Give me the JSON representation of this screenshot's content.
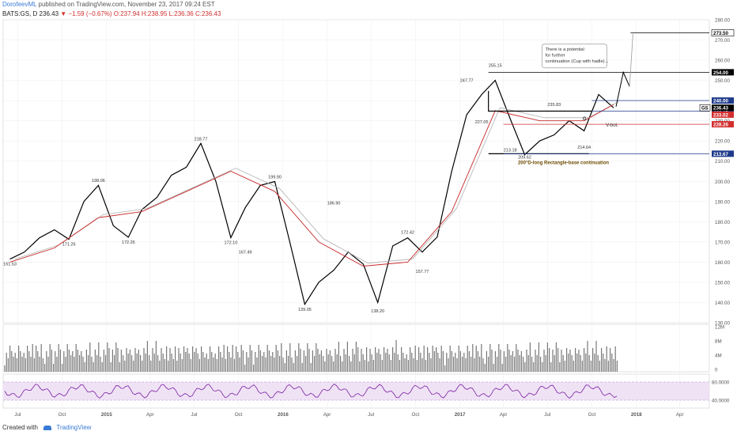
{
  "header": {
    "author": "DorofeevML",
    "published_text": "published on TradingView.com, November 23, 2017 09:24 EST",
    "symbol": "BATS:GS, D",
    "last": "236.43",
    "change": "▼ −1.59 (−0.67%)",
    "ohlc": "O:237.94 H:238.95 L:236.36 C:236.43"
  },
  "footer": {
    "created_with": "Created with",
    "brand": "TradingView"
  },
  "chart_data": {
    "type": "line",
    "symbol": "GS",
    "ylim": [
      130,
      280
    ],
    "y_ticks": [
      "280.00",
      "270.00",
      "260.00",
      "250.00",
      "240.00",
      "230.00",
      "220.00",
      "210.00",
      "200.00",
      "190.00",
      "180.00",
      "170.00",
      "160.00",
      "150.00",
      "140.00",
      "130.00"
    ],
    "x_labels": [
      "Jul",
      "Oct",
      "2015",
      "Apr",
      "Jul",
      "Oct",
      "2016",
      "Apr",
      "Jul",
      "Oct",
      "2017",
      "Apr",
      "Jul",
      "Oct",
      "2018",
      "Apr"
    ],
    "price_series": {
      "x": [
        "2014-06",
        "2014-07",
        "2014-08",
        "2014-09",
        "2014-10",
        "2014-11",
        "2014-12",
        "2015-01",
        "2015-02",
        "2015-03",
        "2015-04",
        "2015-05",
        "2015-06",
        "2015-07",
        "2015-08",
        "2015-09",
        "2015-10",
        "2015-11",
        "2015-12",
        "2016-01",
        "2016-02",
        "2016-03",
        "2016-04",
        "2016-05",
        "2016-06",
        "2016-07",
        "2016-08",
        "2016-09",
        "2016-10",
        "2016-11",
        "2016-12",
        "2017-01",
        "2017-02",
        "2017-03",
        "2017-04",
        "2017-05",
        "2017-06",
        "2017-07",
        "2017-08",
        "2017-09",
        "2017-10",
        "2017-11"
      ],
      "y": [
        161.5,
        165,
        172,
        176,
        171.3,
        190,
        198,
        178,
        172.3,
        186,
        192,
        203,
        207,
        218.8,
        200,
        172.1,
        187,
        198,
        199.9,
        170,
        139.1,
        150,
        156,
        165,
        159,
        140,
        168,
        172,
        165,
        172.4,
        205,
        233,
        243,
        250,
        231,
        213.2,
        220,
        223,
        230,
        225,
        243,
        236.4
      ]
    },
    "ma_series": {
      "x": [
        "2014-06",
        "2014-09",
        "2014-12",
        "2015-03",
        "2015-06",
        "2015-09",
        "2015-12",
        "2016-03",
        "2016-06",
        "2016-09",
        "2016-12",
        "2017-03",
        "2017-06",
        "2017-09",
        "2017-11"
      ],
      "y": [
        160,
        167,
        182,
        185,
        195,
        205,
        195,
        170,
        158,
        160,
        185,
        235,
        230,
        230,
        238
      ]
    },
    "point_labels": [
      {
        "x": "2014-06",
        "y": 161.53,
        "text": "161.53"
      },
      {
        "x": "2014-10",
        "y": 171.26,
        "text": "171.26"
      },
      {
        "x": "2014-12",
        "y": 198.06,
        "text": "198.06"
      },
      {
        "x": "2015-02",
        "y": 172.26,
        "text": "172.26"
      },
      {
        "x": "2015-07",
        "y": 218.77,
        "text": "218.77"
      },
      {
        "x": "2015-09",
        "y": 172.1,
        "text": "172.10"
      },
      {
        "x": "2015-10",
        "y": 167.49,
        "text": "167.49"
      },
      {
        "x": "2015-12",
        "y": 199.9,
        "text": "199.90"
      },
      {
        "x": "2016-02",
        "y": 139.05,
        "text": "139.05"
      },
      {
        "x": "2016-04",
        "y": 186.9,
        "text": "186.90"
      },
      {
        "x": "2016-07",
        "y": 138.2,
        "text": "138.20"
      },
      {
        "x": "2016-09",
        "y": 172.42,
        "text": "172.42"
      },
      {
        "x": "2016-10",
        "y": 157.77,
        "text": "157.77"
      },
      {
        "x": "2017-01",
        "y": 247.77,
        "text": "247.77"
      },
      {
        "x": "2017-02",
        "y": 227.05,
        "text": "227.05"
      },
      {
        "x": "2017-03",
        "y": 255.15,
        "text": "255.15"
      },
      {
        "x": "2017-04",
        "y": 213.18,
        "text": "213.18"
      },
      {
        "x": "2017-05",
        "y": 209.62,
        "text": "209.62"
      },
      {
        "x": "2017-07",
        "y": 235.83,
        "text": "235.83"
      },
      {
        "x": "2017-09",
        "y": 214.64,
        "text": "214.64"
      }
    ],
    "horizontal_levels": [
      {
        "y": 254.0,
        "color": "#000000",
        "from": "2017-03",
        "to": "2017-12",
        "label": "254.00"
      },
      {
        "y": 240.0,
        "color": "#1e3a8a",
        "from": "2017-10",
        "to": "2018-06",
        "label": "240.00"
      },
      {
        "y": 234.76,
        "color": "#1e3a8a",
        "from": "2017-10",
        "to": "2018-06",
        "label": "234.76"
      },
      {
        "y": 228.26,
        "color": "#d32f2f",
        "from": "2017-04",
        "to": "2018-06",
        "label": "228.26"
      },
      {
        "y": 213.67,
        "color": "#1e3a8a",
        "from": "2017-04",
        "to": "2018-06",
        "label": "213.67"
      }
    ],
    "rectangle": {
      "from": "2017-03",
      "to": "2017-10",
      "top": 234.76,
      "bottom": 213.67
    },
    "target_line": {
      "y": 273.5,
      "label": "273.50"
    },
    "last_price": {
      "y": 236.43,
      "label": "236.43",
      "symbol": "GS"
    },
    "badges": [
      {
        "y": 233.02,
        "label": "233.02",
        "color": "#d32f2f"
      }
    ],
    "annotations": {
      "callout": "There is a potential for further continuation (Cup with hadle)...",
      "rectangle_note": "200°D-long Rectangle-base continuation",
      "v_bot": "V-bot.",
      "g_label": "G"
    },
    "volume": {
      "y_ticks": [
        "12M",
        "8M",
        "4M",
        "0"
      ]
    },
    "rsi": {
      "y_ticks": [
        "80.0000",
        "40.0000"
      ],
      "band": [
        40,
        80
      ]
    },
    "colors": {
      "price": "#000000",
      "ma_red": "#c62828",
      "ma_gray": "#b0b0b0",
      "grid": "#eeeeee",
      "rsi_line": "#7b1fa2",
      "rsi_band": "#efe2f5",
      "volume": "#777777"
    }
  }
}
